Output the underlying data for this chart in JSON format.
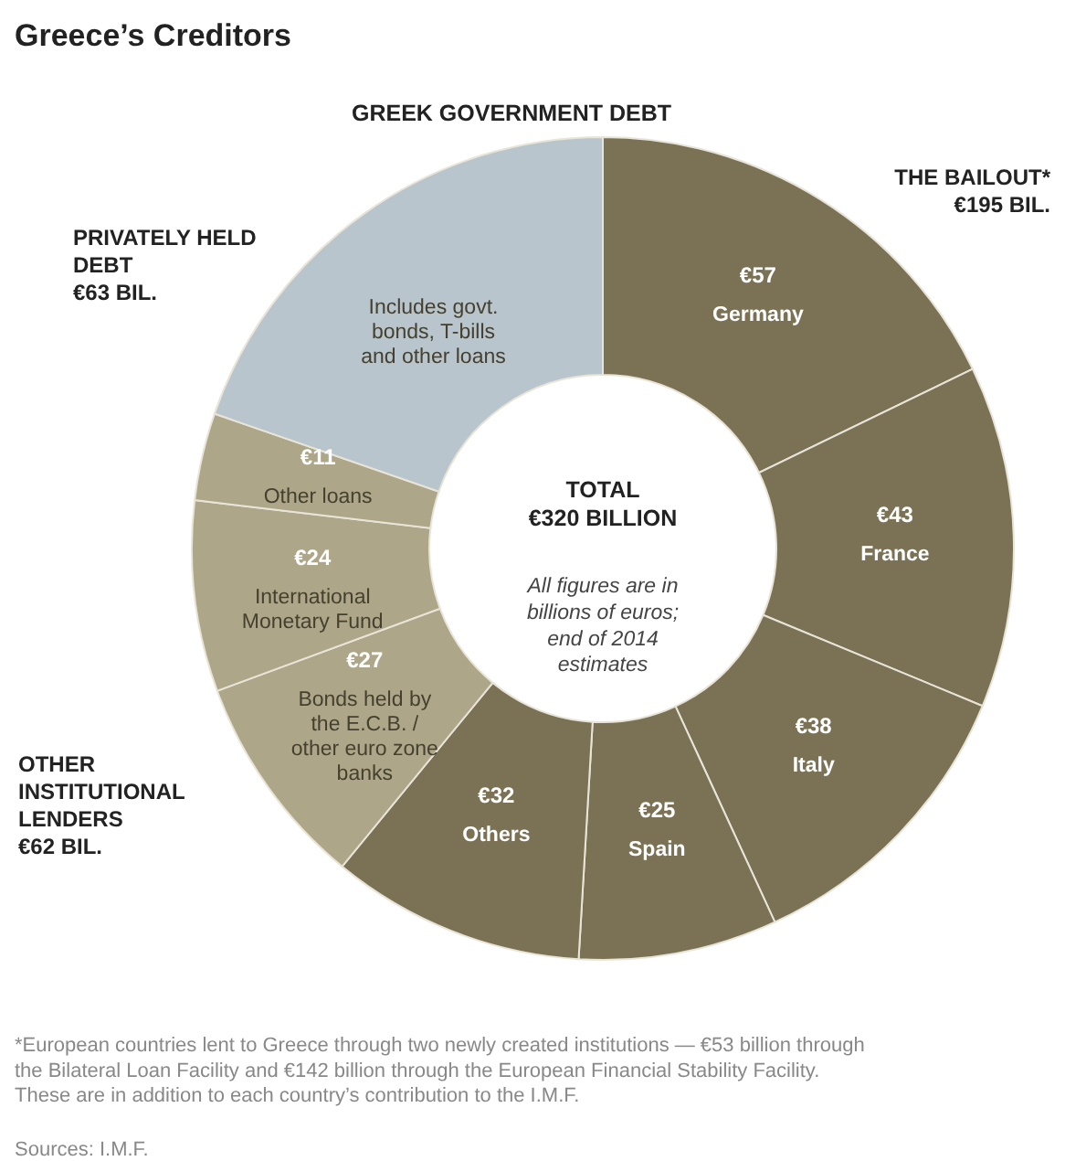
{
  "chart_data": {
    "type": "donut",
    "title": "Greece’s Creditors",
    "subtitle": "GREEK GOVERNMENT DEBT",
    "categories": [
      "Germany",
      "France",
      "Italy",
      "Spain",
      "Others",
      "Bonds held by the E.C.B. / other euro zone banks",
      "International Monetary Fund",
      "Other loans",
      "Includes govt. bonds, T-bills and other loans"
    ],
    "values": [
      57,
      43,
      38,
      25,
      32,
      27,
      24,
      11,
      63
    ],
    "value_labels": [
      "€57",
      "€43",
      "€38",
      "€25",
      "€32",
      "€27",
      "€24",
      "€11",
      null
    ],
    "colors": [
      "#7b7255",
      "#7b7255",
      "#7b7255",
      "#7b7255",
      "#7b7255",
      "#aea688",
      "#aea688",
      "#aea688",
      "#b9c5cc"
    ],
    "annotations": [
      "THE BAILOUT*\n€195 BIL.",
      "PRIVATELY HELD\nDEBT\n€63 BIL.",
      "OTHER\nINSTITUTIONAL\nLENDERS\n€62 BIL.",
      "TOTAL\n€320 BILLION",
      "All figures are in\nbillions of euros;\nend of 2014\nestimates",
      "*European countries lent to Greece through two newly created institutions — €53 billion through the Bilateral Loan Facility and €142 billion through the European Financial Stability Facility. These are in addition to each country’s contribution to the I.M.F.",
      "Sources: I.M.F."
    ],
    "data_labels": false
  }
}
